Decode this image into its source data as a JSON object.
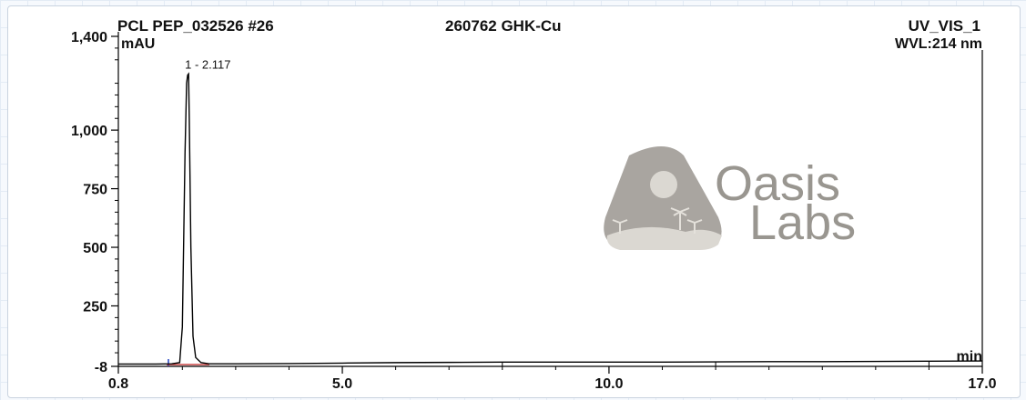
{
  "header": {
    "sample": "PCL PEP_032526 #26",
    "compound": "260762 GHK-Cu",
    "channel": "UV_VIS_1",
    "wavelength": "WVL:214 nm"
  },
  "watermark": {
    "line1": "Oasis",
    "line2": "Labs",
    "color": "#8f8b85"
  },
  "chart_data": {
    "type": "line",
    "title": "",
    "xlabel": "min",
    "ylabel": "mAU",
    "xlim": [
      0.8,
      17.0
    ],
    "ylim": [
      -8,
      1400
    ],
    "x_ticks": [
      0.8,
      5.0,
      10.0,
      17.0
    ],
    "x_tick_labels": [
      "0.8",
      "5.0",
      "10.0",
      "17.0"
    ],
    "y_ticks": [
      -8,
      250,
      500,
      750,
      1000,
      1400
    ],
    "y_tick_labels": [
      "-8",
      "250",
      "500",
      "750",
      "1,000",
      "1,400"
    ],
    "grid": false,
    "line_color": "#000000",
    "series": [
      {
        "x": [
          0.8,
          1.5,
          1.8,
          1.95,
          2.0,
          2.05,
          2.08,
          2.1,
          2.117,
          2.13,
          2.16,
          2.2,
          2.25,
          2.35,
          2.5,
          3.0,
          4.0,
          5.0,
          6.0,
          7.0,
          8.0,
          9.0,
          10.0,
          11.0,
          12.0,
          13.0,
          14.0,
          15.0,
          16.0,
          17.0
        ],
        "y": [
          2,
          2,
          3,
          8,
          160,
          900,
          1200,
          1235,
          1240,
          1050,
          500,
          120,
          30,
          8,
          3,
          3,
          4,
          6,
          8,
          9,
          10,
          10,
          10,
          10,
          11,
          12,
          12,
          13,
          14,
          15
        ]
      }
    ],
    "peaks": [
      {
        "label": "1 - 2.117",
        "x": 2.117,
        "y": 1240
      }
    ]
  }
}
